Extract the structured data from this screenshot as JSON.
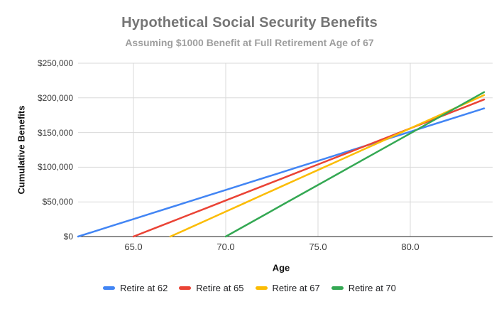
{
  "chart_data": {
    "type": "line",
    "title": "Hypothetical Social Security Benefits",
    "subtitle": "Assuming $1000 Benefit at Full Retirement Age of 67",
    "xlabel": "Age",
    "ylabel": "Cumulative Benefits",
    "xlim": [
      62,
      84
    ],
    "ylim": [
      0,
      250000
    ],
    "grid": true,
    "legend_position": "bottom",
    "x_ticks": [
      {
        "value": 65,
        "label": "65.0"
      },
      {
        "value": 70,
        "label": "70.0"
      },
      {
        "value": 75,
        "label": "75.0"
      },
      {
        "value": 80,
        "label": "80.0"
      }
    ],
    "y_ticks": [
      {
        "value": 0,
        "label": "$0"
      },
      {
        "value": 50000,
        "label": "$50,000"
      },
      {
        "value": 100000,
        "label": "$100,000"
      },
      {
        "value": 150000,
        "label": "$150,000"
      },
      {
        "value": 200000,
        "label": "$200,000"
      },
      {
        "value": 250000,
        "label": "$250,000"
      }
    ],
    "series": [
      {
        "name": "Retire at 62",
        "color": "#4285f4",
        "start_age": 62,
        "annual_benefit": 8400,
        "points": [
          [
            62,
            0
          ],
          [
            63,
            8400
          ],
          [
            64,
            16800
          ],
          [
            65,
            25200
          ],
          [
            66,
            33600
          ],
          [
            67,
            42000
          ],
          [
            68,
            50400
          ],
          [
            69,
            58800
          ],
          [
            70,
            67200
          ],
          [
            71,
            75600
          ],
          [
            72,
            84000
          ],
          [
            73,
            92400
          ],
          [
            74,
            100800
          ],
          [
            75,
            109200
          ],
          [
            76,
            117600
          ],
          [
            77,
            126000
          ],
          [
            78,
            134400
          ],
          [
            79,
            142800
          ],
          [
            80,
            151200
          ],
          [
            81,
            159600
          ],
          [
            82,
            168000
          ],
          [
            83,
            176400
          ],
          [
            84,
            184800
          ]
        ]
      },
      {
        "name": "Retire at 65",
        "color": "#ea4335",
        "start_age": 65,
        "annual_benefit": 10400,
        "points": [
          [
            65,
            0
          ],
          [
            66,
            10400
          ],
          [
            67,
            20800
          ],
          [
            68,
            31200
          ],
          [
            69,
            41600
          ],
          [
            70,
            52000
          ],
          [
            71,
            62400
          ],
          [
            72,
            72800
          ],
          [
            73,
            83200
          ],
          [
            74,
            93600
          ],
          [
            75,
            104000
          ],
          [
            76,
            114400
          ],
          [
            77,
            124800
          ],
          [
            78,
            135200
          ],
          [
            79,
            145600
          ],
          [
            80,
            156000
          ],
          [
            81,
            166400
          ],
          [
            82,
            176800
          ],
          [
            83,
            187200
          ],
          [
            84,
            197600
          ]
        ]
      },
      {
        "name": "Retire at 67",
        "color": "#fbbc04",
        "start_age": 67,
        "annual_benefit": 12000,
        "points": [
          [
            67,
            0
          ],
          [
            68,
            12000
          ],
          [
            69,
            24000
          ],
          [
            70,
            36000
          ],
          [
            71,
            48000
          ],
          [
            72,
            60000
          ],
          [
            73,
            72000
          ],
          [
            74,
            84000
          ],
          [
            75,
            96000
          ],
          [
            76,
            108000
          ],
          [
            77,
            120000
          ],
          [
            78,
            132000
          ],
          [
            79,
            144000
          ],
          [
            80,
            156000
          ],
          [
            81,
            168000
          ],
          [
            82,
            180000
          ],
          [
            83,
            192000
          ],
          [
            84,
            204000
          ]
        ]
      },
      {
        "name": "Retire at 70",
        "color": "#34a853",
        "start_age": 70,
        "annual_benefit": 14880,
        "points": [
          [
            70,
            0
          ],
          [
            71,
            14880
          ],
          [
            72,
            29760
          ],
          [
            73,
            44640
          ],
          [
            74,
            59520
          ],
          [
            75,
            74400
          ],
          [
            76,
            89280
          ],
          [
            77,
            104160
          ],
          [
            78,
            119040
          ],
          [
            79,
            133920
          ],
          [
            80,
            148800
          ],
          [
            81,
            163680
          ],
          [
            82,
            178560
          ],
          [
            83,
            193440
          ],
          [
            84,
            208320
          ]
        ]
      }
    ],
    "colors": {
      "title": "#757575",
      "subtitle": "#9e9e9e",
      "gridline": "#d9d9d9",
      "axis_line": "#1f1f1f",
      "tick_label": "#3c3c3c"
    }
  }
}
